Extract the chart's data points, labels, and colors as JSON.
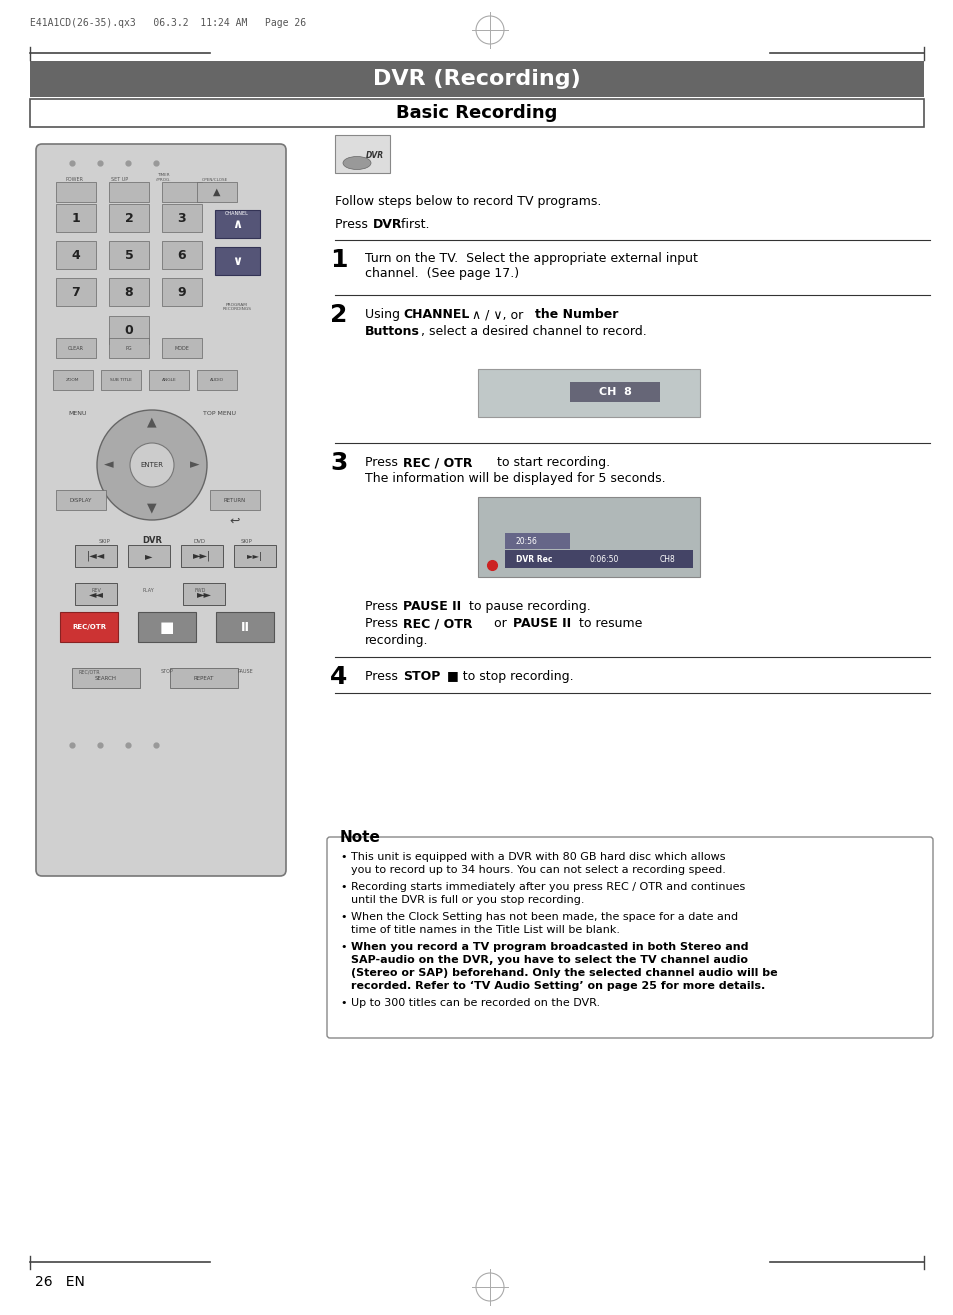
{
  "page_header_text": "E41A1CD(26-35).qx3   06.3.2  11:24 AM   Page 26",
  "title_bar_text": "DVR (Recording)",
  "title_bar_bg": "#666666",
  "title_bar_text_color": "#ffffff",
  "subtitle_text": "Basic Recording",
  "intro_text": "Follow steps below to record TV programs.",
  "step1_text": "Turn on the TV.  Select the appropriate external input\nchannel.  (See page 17.)",
  "step2_ch_text": "CH  8",
  "step3_text2": "The information will be displayed for 5 seconds.",
  "step3_screen_text1": "DVR Rec",
  "step3_screen_text2": "0:06:50",
  "step3_screen_text3": "CH8",
  "step3_screen_text4": "20:56",
  "note_title": "Note",
  "note_bullets": [
    "This unit is equipped with a DVR with 80 GB hard disc which allows you to record up to 34 hours. You can not select a recording speed.",
    "Recording starts immediately after you press REC / OTR and continues until the DVR is full or you stop recording.",
    "When the Clock Setting has not been made, the space for a date and time of title names in the Title List will be blank.",
    "When you record a TV program broadcasted in both Stereo and SAP-audio on the DVR, you have to select the TV channel audio (Stereo or SAP) beforehand. Only the selected channel audio will be recorded. Refer to ‘TV Audio Setting’ on page 25 for more details.",
    "Up to 300 titles can be recorded on the DVR."
  ],
  "note_bold_bullets": [
    false,
    false,
    false,
    true,
    false
  ],
  "page_footer": "26   EN",
  "bg_color": "#ffffff"
}
